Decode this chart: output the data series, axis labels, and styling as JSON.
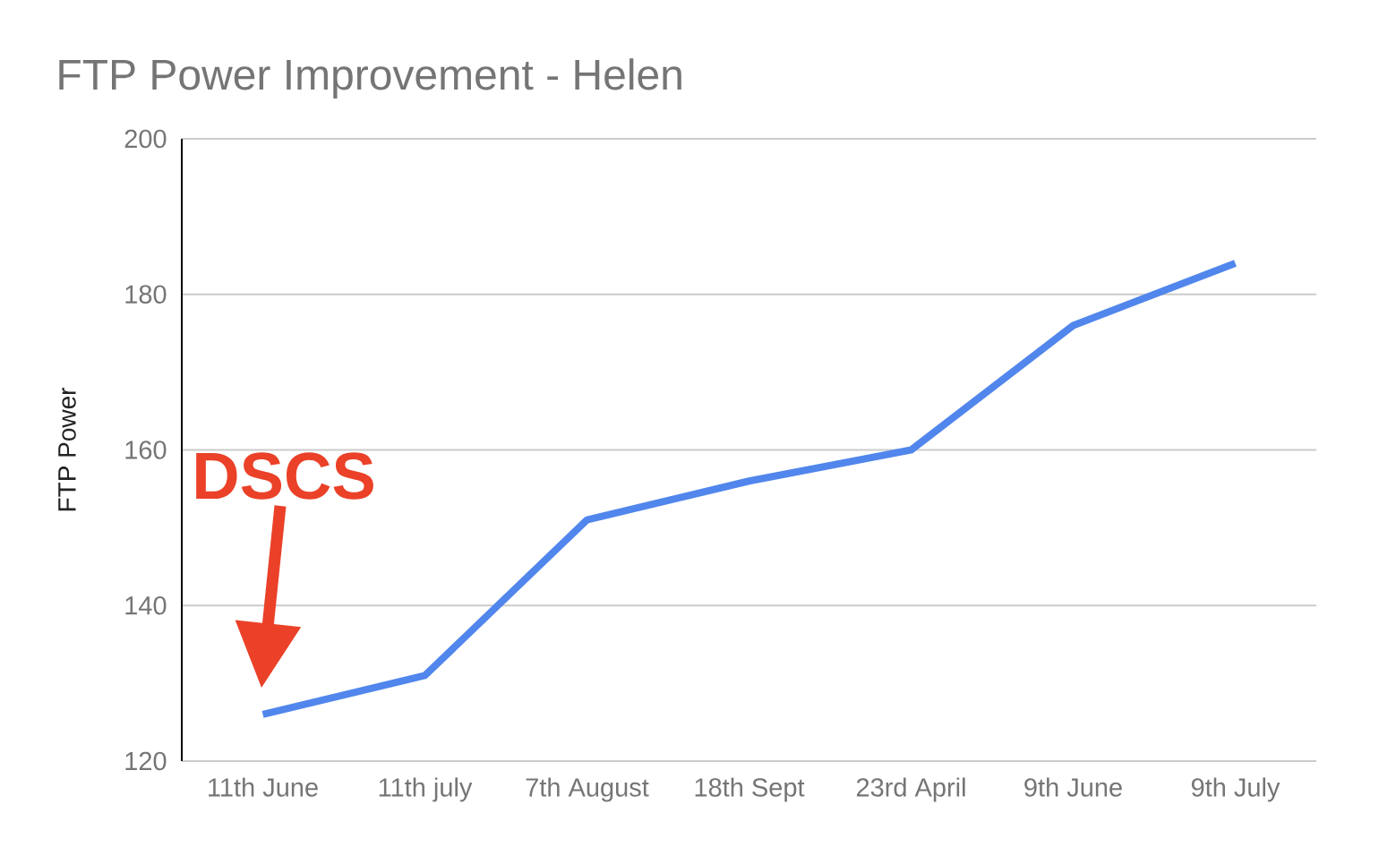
{
  "chart_data": {
    "type": "line",
    "title": "FTP Power Improvement - Helen",
    "ylabel": "FTP Power",
    "categories": [
      "11th June",
      "11th july",
      "7th August",
      "18th Sept",
      "23rd April",
      "9th June",
      "9th July"
    ],
    "series": [
      {
        "color": "#5186ec",
        "values": [
          126,
          131,
          151,
          156,
          160,
          176,
          184
        ]
      }
    ],
    "ylim": [
      120,
      200
    ],
    "yticks": [
      120,
      140,
      160,
      180,
      200
    ],
    "grid": "y",
    "annotations": [
      "DSCS"
    ]
  }
}
